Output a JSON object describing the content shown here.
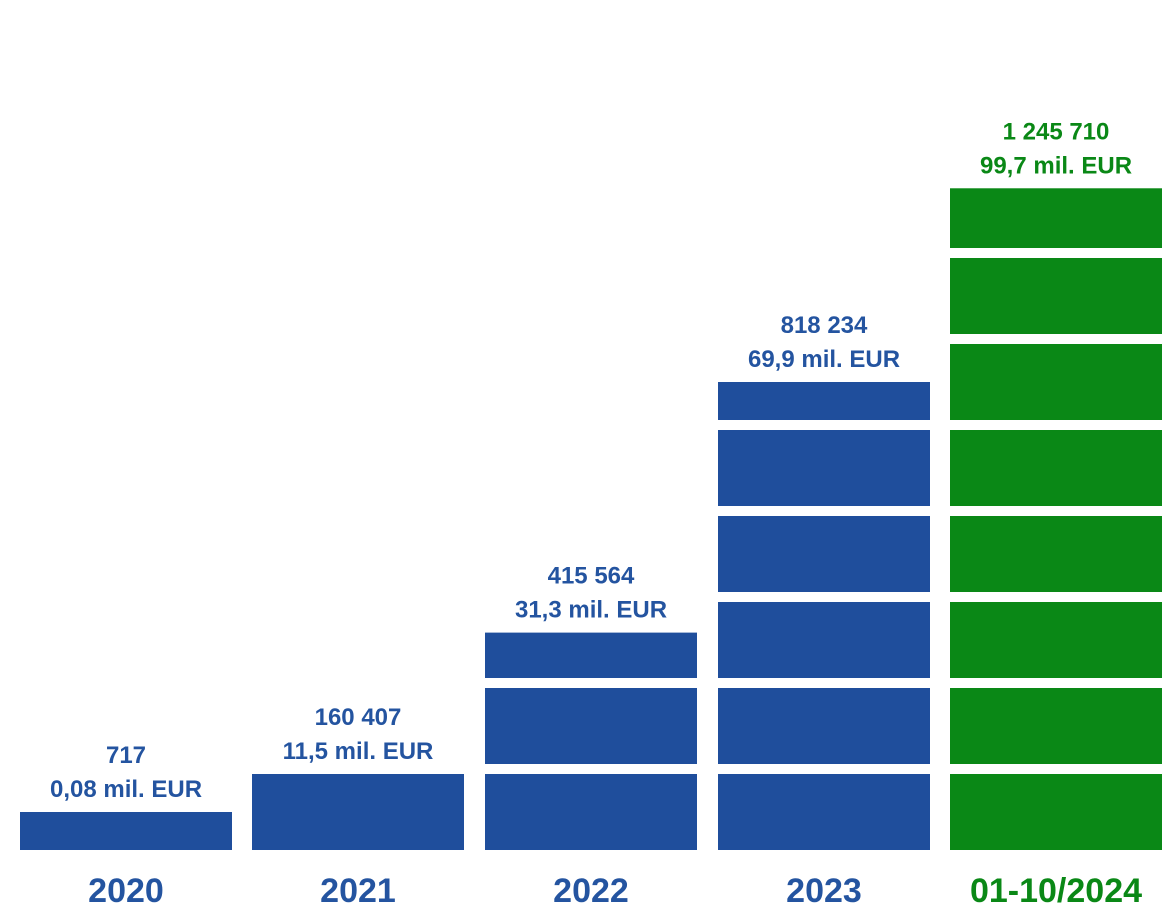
{
  "chart_data": {
    "type": "bar",
    "title": "",
    "xlabel": "",
    "ylabel": "",
    "categories": [
      "2020",
      "2021",
      "2022",
      "2023",
      "01-10/2024"
    ],
    "values": [
      717,
      160407,
      415564,
      818234,
      1245710
    ],
    "value_labels": [
      "717",
      "160 407",
      "415 564",
      "818 234",
      "1 245 710"
    ],
    "amount_labels": [
      "0,08 mil. EUR",
      "11,5 mil. EUR",
      "31,3 mil. EUR",
      "69,9 mil. EUR",
      "99,7 mil. EUR"
    ],
    "amounts_mil_eur": [
      0.08,
      11.5,
      31.3,
      69.9,
      99.7
    ],
    "bar_colors": [
      "#1f4e9c",
      "#1f4e9c",
      "#1f4e9c",
      "#1f4e9c",
      "#0a8816"
    ],
    "label_colors": [
      "#2454a0",
      "#2454a0",
      "#2454a0",
      "#2454a0",
      "#0a8816"
    ],
    "grid": false,
    "legend": "none"
  }
}
